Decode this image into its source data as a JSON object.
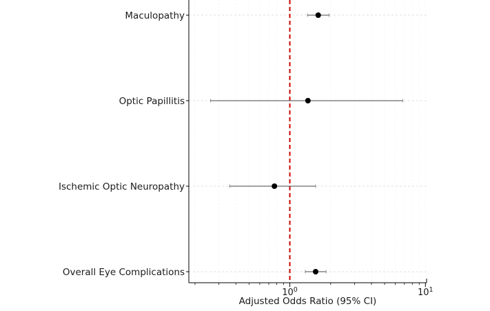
{
  "chart_data": {
    "type": "forest",
    "xlabel": "Adjusted Odds Ratio (95% CI)",
    "xscale": "log",
    "xlim": [
      0.18,
      10.2
    ],
    "xticks": [
      {
        "value": 1,
        "base": "10",
        "exp": "0"
      },
      {
        "value": 10,
        "base": "10",
        "exp": "1"
      }
    ],
    "reference_line": {
      "value": 1,
      "color": "#cc0000",
      "style": "dashed"
    },
    "grid": true,
    "rows": [
      {
        "label": "Maculopathy",
        "or": 1.62,
        "lower": 1.35,
        "upper": 1.95
      },
      {
        "label": "Optic Papillitis",
        "or": 1.36,
        "lower": 0.26,
        "upper": 6.8
      },
      {
        "label": "Ischemic Optic Neuropathy",
        "or": 0.77,
        "lower": 0.36,
        "upper": 1.55
      },
      {
        "label": "Overall Eye Complications",
        "or": 1.55,
        "lower": 1.3,
        "upper": 1.85
      }
    ]
  }
}
